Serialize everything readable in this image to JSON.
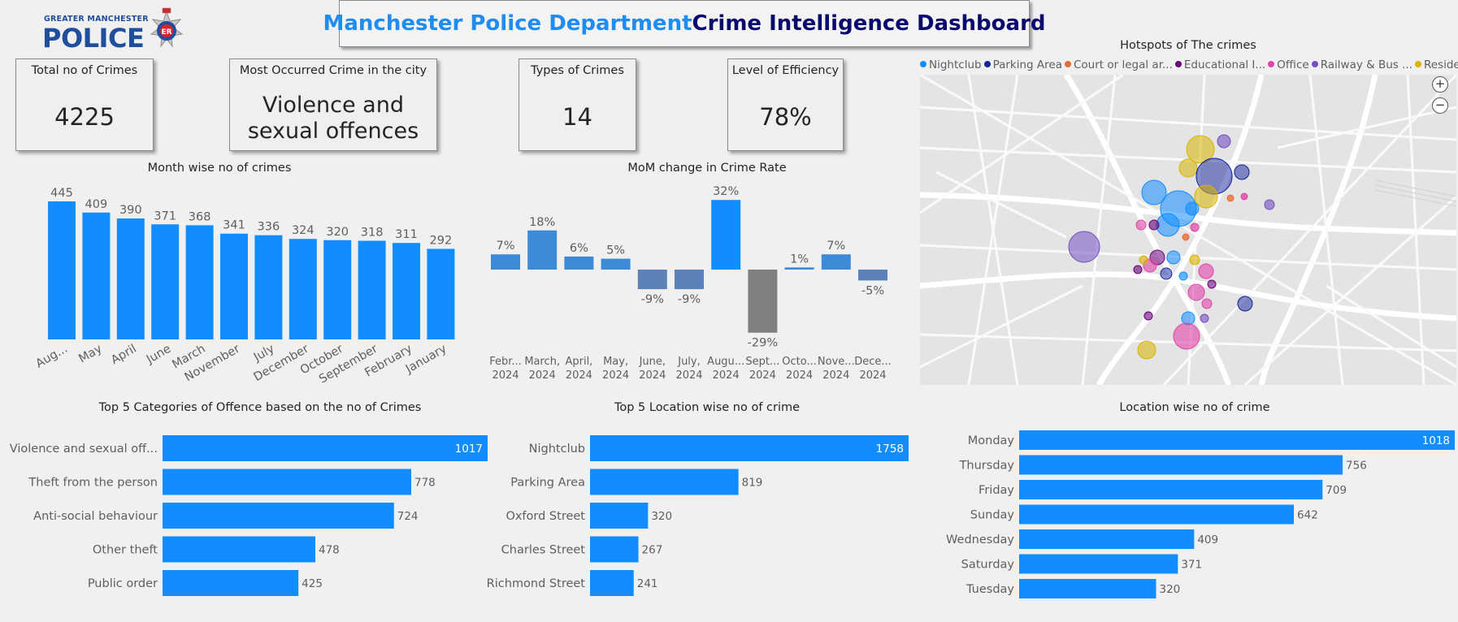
{
  "header": {
    "title_part1": "Manchester Police Department",
    "title_part2": "Crime Intelligence Dashboard",
    "logo_top": "GREATER MANCHESTER",
    "logo_main": "POLICE",
    "logo_badge": "ER"
  },
  "kpis": {
    "total_label": "Total no of Crimes",
    "total_value": "4225",
    "most_label": "Most Occurred Crime in the city",
    "most_value_line1": "Violence and",
    "most_value_line2": "sexual offences",
    "types_label": "Types of Crimes",
    "types_value": "14",
    "efficiency_label": "Level of Efficiency",
    "efficiency_value": "78%"
  },
  "map": {
    "title": "Hotspots of The crimes",
    "legend": [
      {
        "label": "Nightclub",
        "color": "#118DFF"
      },
      {
        "label": "Parking Area",
        "color": "#12239E"
      },
      {
        "label": "Court or legal ar...",
        "color": "#E66C37"
      },
      {
        "label": "Educational I...",
        "color": "#6B007B"
      },
      {
        "label": "Office",
        "color": "#E044A7"
      },
      {
        "label": "Railway & Bus ...",
        "color": "#744EC2"
      },
      {
        "label": "Residential",
        "color": "#D9B300"
      }
    ]
  },
  "chart_data": [
    {
      "type": "bar",
      "title": "Month wise no of crimes",
      "categories": [
        "Aug...",
        "May",
        "April",
        "June",
        "March",
        "November",
        "July",
        "December",
        "October",
        "September",
        "February",
        "January"
      ],
      "values": [
        445,
        409,
        390,
        371,
        368,
        341,
        336,
        324,
        320,
        318,
        311,
        292
      ],
      "color": "#118DFF"
    },
    {
      "type": "bar",
      "title": "MoM change in Crime Rate",
      "categories": [
        "Febr... 2024",
        "March, 2024",
        "April, 2024",
        "May, 2024",
        "June, 2024",
        "July, 2024",
        "Augu... 2024",
        "Sept... 2024",
        "Octo... 2024",
        "Nove... 2024",
        "Dece... 2024"
      ],
      "category_lines": [
        [
          "Febr...",
          "2024"
        ],
        [
          "March,",
          "2024"
        ],
        [
          "April,",
          "2024"
        ],
        [
          "May,",
          "2024"
        ],
        [
          "June,",
          "2024"
        ],
        [
          "July,",
          "2024"
        ],
        [
          "Augu...",
          "2024"
        ],
        [
          "Sept...",
          "2024"
        ],
        [
          "Octo...",
          "2024"
        ],
        [
          "Nove...",
          "2024"
        ],
        [
          "Dece...",
          "2024"
        ]
      ],
      "values": [
        7,
        18,
        6,
        5,
        -9,
        -9,
        32,
        -29,
        1,
        7,
        -5
      ],
      "data_labels": [
        "7%",
        "18%",
        "6%",
        "5%",
        "-9%",
        "-9%",
        "32%",
        "-29%",
        "1%",
        "7%",
        "-5%"
      ],
      "colors": {
        "positive": "#3C8AD8",
        "negative": "#5C82B8",
        "max": "#118DFF",
        "min": "#808080"
      }
    },
    {
      "type": "bar",
      "orientation": "horizontal",
      "title": "Top 5 Categories of Offence based on the no of Crimes",
      "categories": [
        "Violence and sexual off...",
        "Theft from the person",
        "Anti-social behaviour",
        "Other theft",
        "Public order"
      ],
      "values": [
        1017,
        778,
        724,
        478,
        425
      ],
      "color": "#118DFF"
    },
    {
      "type": "bar",
      "orientation": "horizontal",
      "title": "Top 5 Location wise no of crime",
      "categories": [
        "Nightclub",
        "Parking Area",
        "Oxford Street",
        "Charles Street",
        "Richmond Street"
      ],
      "values": [
        1758,
        819,
        320,
        267,
        241
      ],
      "color": "#118DFF"
    },
    {
      "type": "bar",
      "orientation": "horizontal",
      "title": "Location wise no of crime",
      "categories": [
        "Monday",
        "Thursday",
        "Friday",
        "Sunday",
        "Wednesday",
        "Saturday",
        "Tuesday"
      ],
      "values": [
        1018,
        756,
        709,
        642,
        409,
        371,
        320
      ],
      "color": "#118DFF"
    }
  ]
}
